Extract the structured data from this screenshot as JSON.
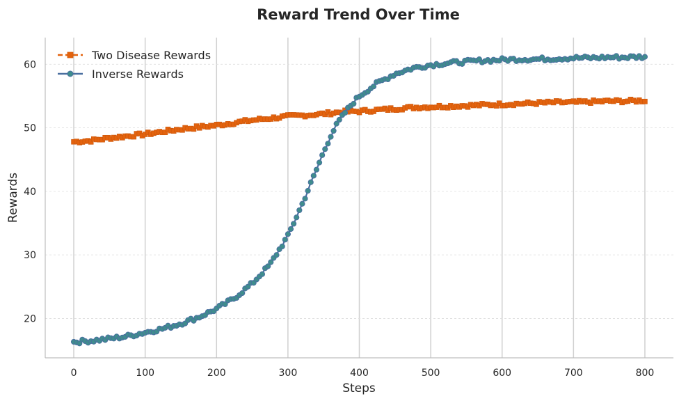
{
  "chart_data": {
    "type": "line",
    "title": "Reward Trend Over Time",
    "xlabel": "Steps",
    "ylabel": "Rewards",
    "xlim": [
      -40,
      840
    ],
    "ylim": [
      13.8,
      64.2
    ],
    "xticks": [
      0,
      100,
      200,
      300,
      400,
      500,
      600,
      700,
      800
    ],
    "yticks": [
      20,
      30,
      40,
      50,
      60
    ],
    "grid": {
      "vertical": "solid",
      "horizontal": "dashed"
    },
    "legend_position": "top-left",
    "series": [
      {
        "name": "Two Disease Rewards",
        "color": "#e3630e",
        "line_style": "dashed",
        "marker": "square",
        "x": [
          0,
          25,
          50,
          75,
          100,
          125,
          150,
          175,
          200,
          225,
          250,
          275,
          300,
          325,
          350,
          375,
          400,
          425,
          450,
          475,
          500,
          525,
          550,
          575,
          600,
          625,
          650,
          675,
          700,
          725,
          750,
          775,
          800
        ],
        "y": [
          47.8,
          48.0,
          48.4,
          48.7,
          49.0,
          49.4,
          49.8,
          50.1,
          50.4,
          50.8,
          51.2,
          51.5,
          51.8,
          52.0,
          52.2,
          52.5,
          52.6,
          52.8,
          53.0,
          53.2,
          53.3,
          53.4,
          53.5,
          53.6,
          53.7,
          53.8,
          53.9,
          54.0,
          54.0,
          54.1,
          54.2,
          54.2,
          54.3
        ]
      },
      {
        "name": "Inverse Rewards",
        "color": "#4a6fa0",
        "marker_color": "#3f8d8d",
        "line_style": "solid",
        "marker": "circle",
        "x": [
          0,
          25,
          50,
          75,
          100,
          125,
          150,
          175,
          200,
          225,
          250,
          275,
          300,
          310,
          320,
          330,
          340,
          350,
          360,
          370,
          380,
          390,
          400,
          425,
          450,
          475,
          500,
          525,
          550,
          575,
          600,
          625,
          650,
          675,
          700,
          725,
          750,
          775,
          800
        ],
        "y": [
          16.3,
          16.5,
          16.8,
          17.2,
          17.8,
          18.4,
          19.2,
          20.2,
          21.5,
          23.2,
          25.5,
          28.5,
          33.0,
          35.5,
          38.0,
          40.7,
          43.4,
          46.2,
          48.8,
          50.8,
          52.4,
          53.8,
          55.0,
          57.0,
          58.5,
          59.4,
          59.9,
          60.2,
          60.4,
          60.6,
          60.7,
          60.8,
          60.8,
          60.9,
          61.0,
          61.0,
          61.1,
          61.1,
          61.2
        ]
      }
    ]
  }
}
